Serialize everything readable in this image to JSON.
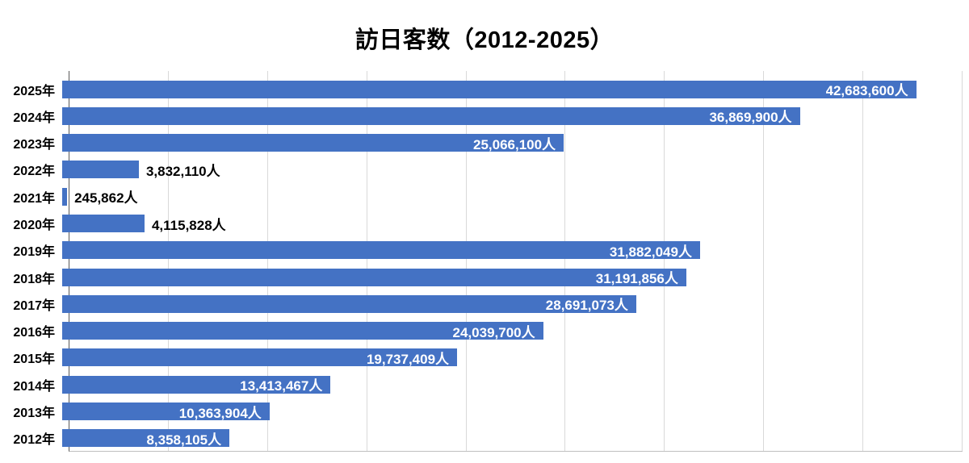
{
  "chart_data": {
    "type": "bar",
    "orientation": "horizontal",
    "title": "訪日客数（2012-2025）",
    "categories": [
      "2025年",
      "2024年",
      "2023年",
      "2022年",
      "2021年",
      "2020年",
      "2019年",
      "2018年",
      "2017年",
      "2016年",
      "2015年",
      "2014年",
      "2013年",
      "2012年"
    ],
    "values": [
      42683600,
      36869900,
      25066100,
      3832110,
      245862,
      4115828,
      31882049,
      31191856,
      28691073,
      24039700,
      19737409,
      13413467,
      10363904,
      8358105
    ],
    "value_labels": [
      "42,683,600人",
      "36,869,900人",
      "25,066,100人",
      "3,832,110人",
      "245,862人",
      "4,115,828人",
      "31,882,049人",
      "31,191,856人",
      "28,691,073人",
      "24,039,700人",
      "19,737,409人",
      "13,413,467人",
      "10,363,904人",
      "8,358,105人"
    ],
    "xlim": [
      0,
      45000000
    ],
    "grid": true,
    "grid_interval": 5000000,
    "legend": "none",
    "bar_color": "#4472C4",
    "inside_label_color": "#FFFFFF",
    "outside_label_color": "#000000",
    "gridline_color": "#D9D9D9",
    "inside_label_min": 5000000
  }
}
